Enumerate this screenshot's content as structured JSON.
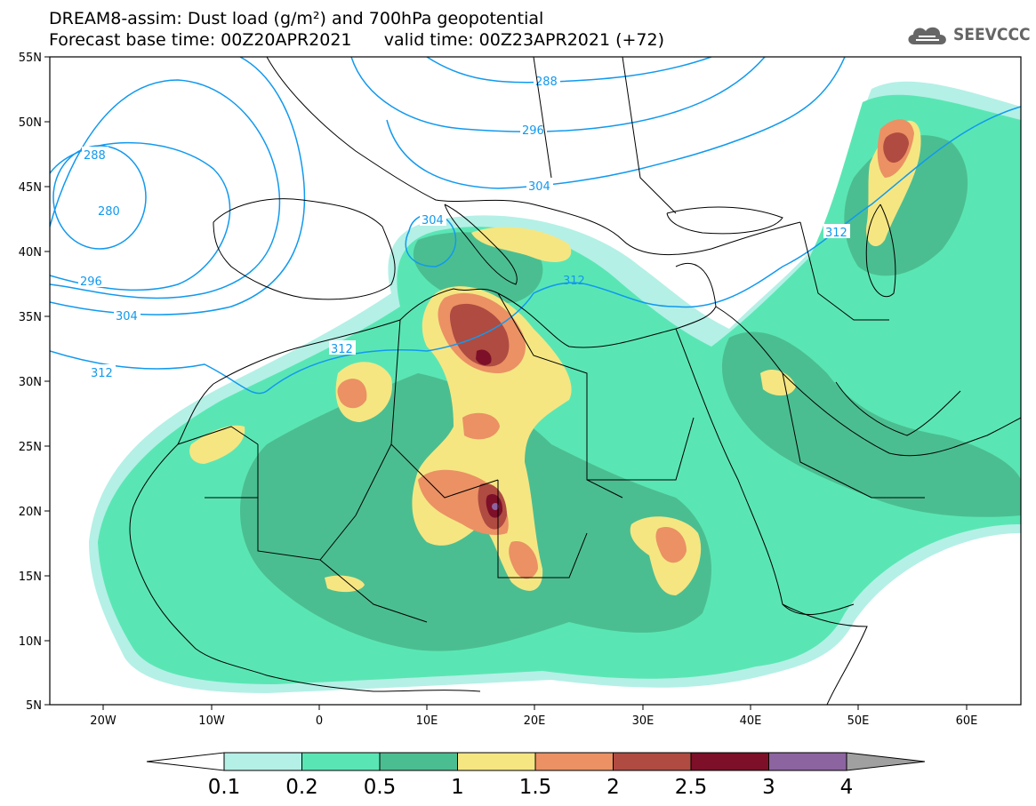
{
  "header": {
    "title_line1": "DREAM8-assim: Dust load (g/m²) and 700hPa geopotential",
    "title_line2": "Forecast base time: 00Z20APR2021      valid time: 00Z23APR2021 (+72)"
  },
  "logo": {
    "text": "SEEVCCC",
    "icon": "cloud-icon"
  },
  "map": {
    "lat_labels": [
      "55N",
      "50N",
      "45N",
      "40N",
      "35N",
      "30N",
      "25N",
      "20N",
      "15N",
      "10N",
      "5N"
    ],
    "lon_labels": [
      "20W",
      "10W",
      "0",
      "10E",
      "20E",
      "30E",
      "40E",
      "50E",
      "60E"
    ],
    "contour_labels": {
      "c288_top": "288",
      "c296_top": "296",
      "c304_top": "304",
      "c288_left": "288",
      "c280": "280",
      "c296_left": "296",
      "c304_left": "304",
      "c312_left": "312",
      "c304_med": "304",
      "c312_sahara": "312",
      "c312_east": "312",
      "c312_med": "312"
    },
    "dust_classes": {
      "0.1-0.2": "#b4f0e6",
      "0.2-0.5": "#5ae6b4",
      "0.5-1": "#4bbe91",
      "1-1.5": "#f5e682",
      "1.5-2": "#eb9164",
      "2-2.5": "#af4b41",
      "2.5-3": "#7d0f28",
      "3-4": "#8c64a0"
    }
  },
  "colorbar": {
    "labels": [
      "0.1",
      "0.2",
      "0.5",
      "1",
      "1.5",
      "2",
      "2.5",
      "3",
      "4"
    ],
    "colors": [
      "#b4f0e6",
      "#5ae6b4",
      "#4bbe91",
      "#f5e682",
      "#eb9164",
      "#af4b41",
      "#7d0f28",
      "#8c64a0"
    ],
    "under_color": "#ffffff",
    "over_color": "#a0a0a0"
  }
}
